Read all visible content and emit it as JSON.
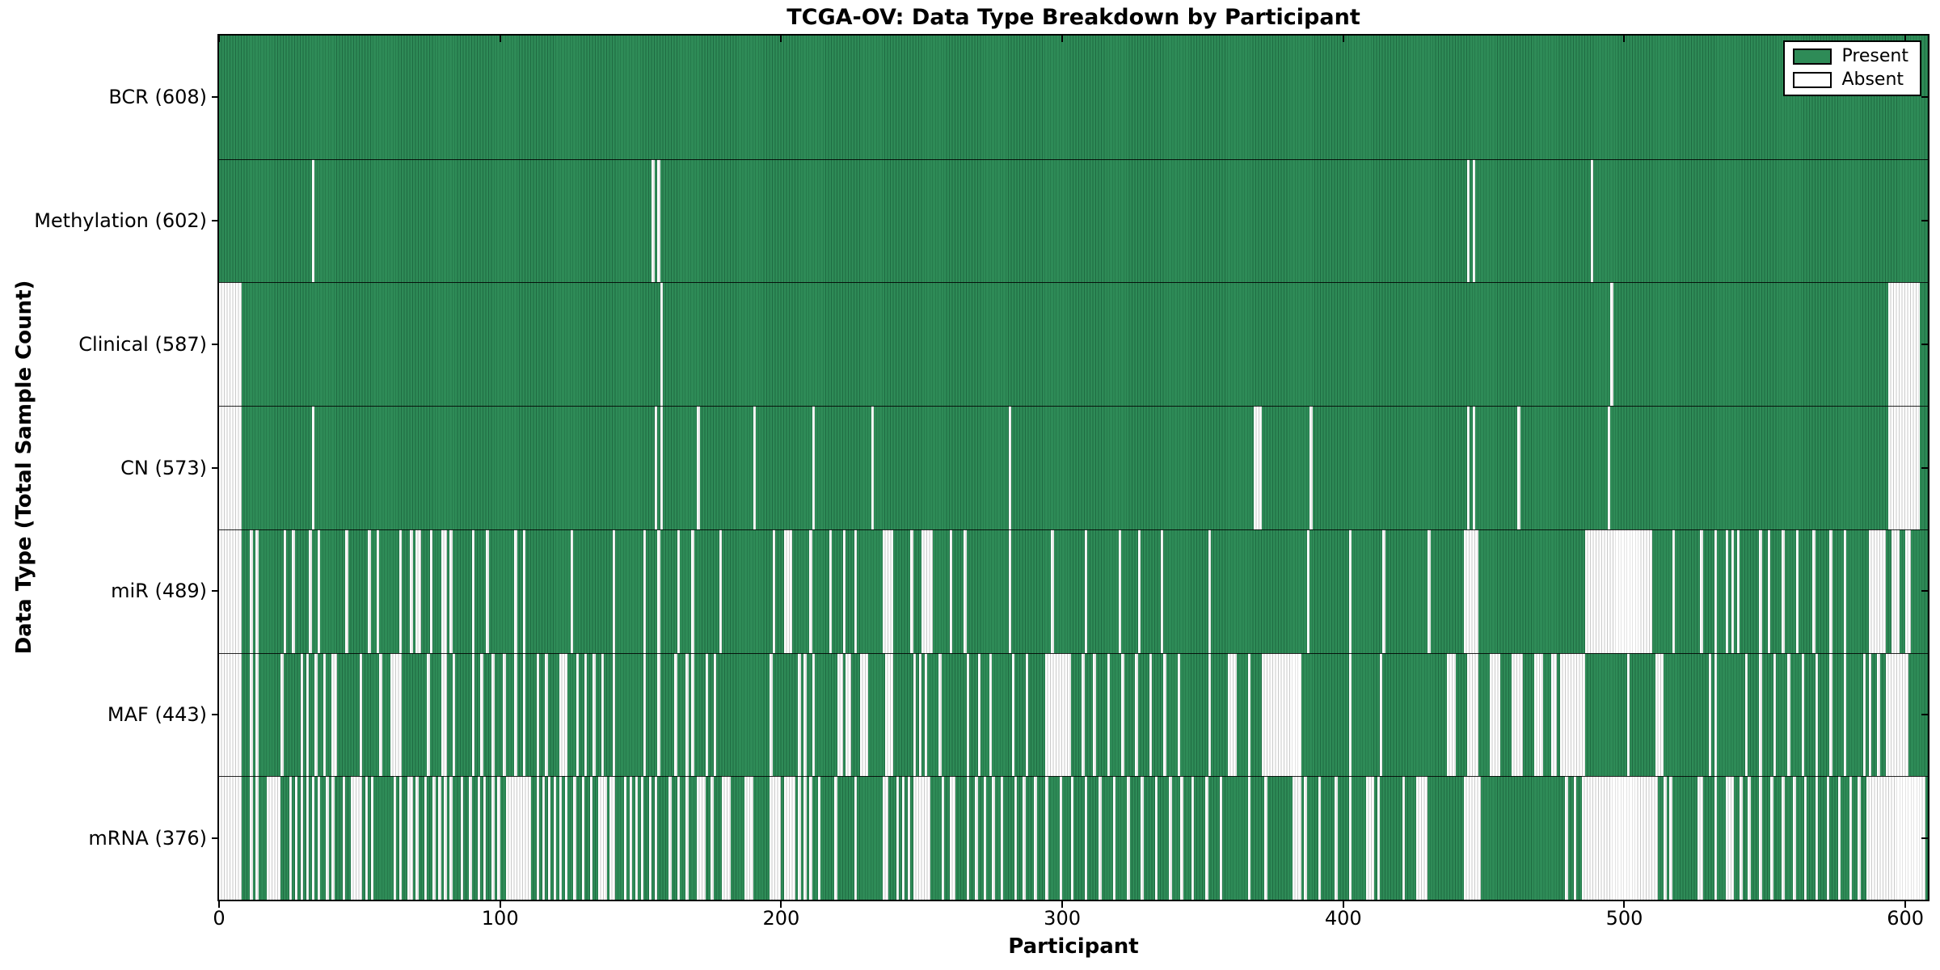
{
  "title": "TCGA-OV: Data Type Breakdown by Participant",
  "xlabel": "Participant",
  "ylabel": "Data Type (Total Sample Count)",
  "legend": {
    "present_label": "Present",
    "absent_label": "Absent"
  },
  "colors": {
    "present_fill": "#2e8b57",
    "present_edge": "#1f6b42",
    "absent_fill": "#ffffff",
    "absent_edge": "#c9c9c9",
    "row_separator": "#000000",
    "spine": "#000000"
  },
  "chart_data": {
    "type": "heatmap",
    "title": "TCGA-OV: Data Type Breakdown by Participant",
    "xlabel": "Participant",
    "ylabel": "Data Type (Total Sample Count)",
    "legend_entries": [
      "Present",
      "Absent"
    ],
    "legend_position": "upper right",
    "grid": false,
    "n_participants": 608,
    "x_range": [
      0,
      608
    ],
    "x_ticks": [
      0,
      100,
      200,
      300,
      400,
      500,
      600
    ],
    "cell_values": {
      "present": 1,
      "absent": 0
    },
    "rows": [
      {
        "name": "BCR",
        "label": "BCR (608)",
        "present_count": 608,
        "absent_count": 0,
        "absent_ranges": []
      },
      {
        "name": "Methylation",
        "label": "Methylation (602)",
        "present_count": 602,
        "absent_count": 6,
        "absent_ranges": [
          [
            33,
            33
          ],
          [
            154,
            154
          ],
          [
            156,
            156
          ],
          [
            444,
            444
          ],
          [
            446,
            446
          ],
          [
            488,
            488
          ]
        ]
      },
      {
        "name": "Clinical",
        "label": "Clinical (587)",
        "present_count": 587,
        "absent_count": 21,
        "absent_ranges": [
          [
            0,
            7
          ],
          [
            157,
            157
          ],
          [
            495,
            495
          ],
          [
            594,
            604
          ]
        ]
      },
      {
        "name": "CN",
        "label": "CN (573)",
        "present_count": 573,
        "absent_count": 35,
        "absent_ranges": [
          [
            0,
            7
          ],
          [
            33,
            33
          ],
          [
            155,
            155
          ],
          [
            157,
            157
          ],
          [
            170,
            170
          ],
          [
            190,
            190
          ],
          [
            211,
            211
          ],
          [
            232,
            232
          ],
          [
            281,
            281
          ],
          [
            368,
            370
          ],
          [
            388,
            388
          ],
          [
            444,
            444
          ],
          [
            446,
            446
          ],
          [
            462,
            462
          ],
          [
            494,
            494
          ],
          [
            594,
            604
          ]
        ]
      },
      {
        "name": "miR",
        "label": "miR (489)",
        "present_count": 489,
        "absent_count": 119,
        "absent_ranges": [
          [
            0,
            7
          ],
          [
            11,
            11
          ],
          [
            13,
            13
          ],
          [
            23,
            23
          ],
          [
            26,
            26
          ],
          [
            32,
            32
          ],
          [
            35,
            35
          ],
          [
            45,
            45
          ],
          [
            53,
            53
          ],
          [
            56,
            56
          ],
          [
            64,
            64
          ],
          [
            68,
            68
          ],
          [
            70,
            71
          ],
          [
            75,
            75
          ],
          [
            79,
            80
          ],
          [
            82,
            82
          ],
          [
            90,
            90
          ],
          [
            95,
            95
          ],
          [
            105,
            105
          ],
          [
            108,
            108
          ],
          [
            125,
            125
          ],
          [
            140,
            140
          ],
          [
            151,
            151
          ],
          [
            156,
            156
          ],
          [
            163,
            163
          ],
          [
            168,
            168
          ],
          [
            178,
            178
          ],
          [
            197,
            197
          ],
          [
            201,
            203
          ],
          [
            210,
            210
          ],
          [
            217,
            217
          ],
          [
            222,
            222
          ],
          [
            226,
            226
          ],
          [
            236,
            239
          ],
          [
            246,
            246
          ],
          [
            250,
            253
          ],
          [
            260,
            260
          ],
          [
            265,
            265
          ],
          [
            281,
            281
          ],
          [
            296,
            296
          ],
          [
            308,
            308
          ],
          [
            320,
            320
          ],
          [
            327,
            327
          ],
          [
            335,
            335
          ],
          [
            352,
            352
          ],
          [
            387,
            387
          ],
          [
            402,
            402
          ],
          [
            414,
            414
          ],
          [
            430,
            430
          ],
          [
            443,
            447
          ],
          [
            486,
            509
          ],
          [
            517,
            517
          ],
          [
            527,
            527
          ],
          [
            532,
            532
          ],
          [
            536,
            536
          ],
          [
            538,
            538
          ],
          [
            540,
            540
          ],
          [
            548,
            548
          ],
          [
            551,
            551
          ],
          [
            556,
            556
          ],
          [
            561,
            561
          ],
          [
            567,
            567
          ],
          [
            573,
            573
          ],
          [
            578,
            578
          ],
          [
            587,
            592
          ],
          [
            595,
            597
          ],
          [
            600,
            601
          ]
        ]
      },
      {
        "name": "MAF",
        "label": "MAF (443)",
        "present_count": 443,
        "absent_count": 165,
        "absent_ranges": [
          [
            0,
            7
          ],
          [
            11,
            11
          ],
          [
            13,
            13
          ],
          [
            22,
            22
          ],
          [
            29,
            29
          ],
          [
            31,
            31
          ],
          [
            34,
            34
          ],
          [
            37,
            37
          ],
          [
            40,
            41
          ],
          [
            50,
            50
          ],
          [
            57,
            57
          ],
          [
            61,
            64
          ],
          [
            74,
            74
          ],
          [
            79,
            80
          ],
          [
            83,
            83
          ],
          [
            90,
            90
          ],
          [
            93,
            93
          ],
          [
            97,
            97
          ],
          [
            101,
            101
          ],
          [
            105,
            105
          ],
          [
            108,
            108
          ],
          [
            113,
            113
          ],
          [
            116,
            116
          ],
          [
            121,
            123
          ],
          [
            127,
            127
          ],
          [
            130,
            130
          ],
          [
            133,
            133
          ],
          [
            136,
            136
          ],
          [
            140,
            140
          ],
          [
            151,
            151
          ],
          [
            156,
            156
          ],
          [
            162,
            162
          ],
          [
            166,
            166
          ],
          [
            168,
            168
          ],
          [
            173,
            173
          ],
          [
            176,
            176
          ],
          [
            196,
            196
          ],
          [
            206,
            206
          ],
          [
            208,
            208
          ],
          [
            211,
            211
          ],
          [
            220,
            221
          ],
          [
            223,
            224
          ],
          [
            228,
            230
          ],
          [
            237,
            239
          ],
          [
            247,
            247
          ],
          [
            249,
            249
          ],
          [
            251,
            251
          ],
          [
            256,
            256
          ],
          [
            266,
            266
          ],
          [
            270,
            270
          ],
          [
            274,
            274
          ],
          [
            282,
            282
          ],
          [
            287,
            287
          ],
          [
            294,
            302
          ],
          [
            307,
            307
          ],
          [
            311,
            311
          ],
          [
            316,
            316
          ],
          [
            321,
            321
          ],
          [
            326,
            326
          ],
          [
            331,
            331
          ],
          [
            336,
            336
          ],
          [
            341,
            341
          ],
          [
            352,
            352
          ],
          [
            359,
            361
          ],
          [
            366,
            366
          ],
          [
            371,
            384
          ],
          [
            402,
            402
          ],
          [
            413,
            413
          ],
          [
            437,
            439
          ],
          [
            444,
            447
          ],
          [
            452,
            455
          ],
          [
            460,
            463
          ],
          [
            468,
            470
          ],
          [
            474,
            475
          ],
          [
            477,
            485
          ],
          [
            501,
            501
          ],
          [
            511,
            513
          ],
          [
            530,
            530
          ],
          [
            532,
            532
          ],
          [
            543,
            543
          ],
          [
            548,
            548
          ],
          [
            553,
            553
          ],
          [
            558,
            558
          ],
          [
            563,
            563
          ],
          [
            568,
            568
          ],
          [
            573,
            573
          ],
          [
            578,
            578
          ],
          [
            585,
            585
          ],
          [
            587,
            587
          ],
          [
            590,
            590
          ],
          [
            593,
            600
          ]
        ]
      },
      {
        "name": "mRNA",
        "label": "mRNA (376)",
        "present_count": 376,
        "absent_count": 232,
        "absent_ranges": [
          [
            0,
            7
          ],
          [
            11,
            11
          ],
          [
            13,
            13
          ],
          [
            17,
            21
          ],
          [
            25,
            25
          ],
          [
            27,
            27
          ],
          [
            29,
            29
          ],
          [
            31,
            31
          ],
          [
            33,
            33
          ],
          [
            35,
            35
          ],
          [
            38,
            38
          ],
          [
            40,
            40
          ],
          [
            44,
            44
          ],
          [
            47,
            50
          ],
          [
            52,
            52
          ],
          [
            54,
            54
          ],
          [
            62,
            62
          ],
          [
            64,
            64
          ],
          [
            67,
            68
          ],
          [
            70,
            70
          ],
          [
            73,
            73
          ],
          [
            76,
            76
          ],
          [
            78,
            78
          ],
          [
            80,
            80
          ],
          [
            82,
            82
          ],
          [
            86,
            86
          ],
          [
            89,
            89
          ],
          [
            92,
            92
          ],
          [
            94,
            94
          ],
          [
            97,
            97
          ],
          [
            99,
            99
          ],
          [
            102,
            110
          ],
          [
            113,
            113
          ],
          [
            115,
            115
          ],
          [
            117,
            117
          ],
          [
            119,
            119
          ],
          [
            121,
            121
          ],
          [
            123,
            123
          ],
          [
            126,
            126
          ],
          [
            129,
            129
          ],
          [
            132,
            132
          ],
          [
            135,
            137
          ],
          [
            139,
            140
          ],
          [
            144,
            144
          ],
          [
            146,
            146
          ],
          [
            148,
            148
          ],
          [
            150,
            150
          ],
          [
            153,
            153
          ],
          [
            155,
            155
          ],
          [
            160,
            160
          ],
          [
            163,
            163
          ],
          [
            166,
            166
          ],
          [
            170,
            172
          ],
          [
            175,
            175
          ],
          [
            179,
            181
          ],
          [
            187,
            189
          ],
          [
            196,
            199
          ],
          [
            201,
            204
          ],
          [
            206,
            206
          ],
          [
            208,
            208
          ],
          [
            210,
            210
          ],
          [
            213,
            213
          ],
          [
            219,
            219
          ],
          [
            226,
            226
          ],
          [
            236,
            237
          ],
          [
            241,
            241
          ],
          [
            243,
            243
          ],
          [
            245,
            245
          ],
          [
            247,
            252
          ],
          [
            257,
            257
          ],
          [
            260,
            261
          ],
          [
            266,
            266
          ],
          [
            269,
            269
          ],
          [
            272,
            272
          ],
          [
            275,
            275
          ],
          [
            278,
            278
          ],
          [
            283,
            283
          ],
          [
            286,
            286
          ],
          [
            290,
            290
          ],
          [
            294,
            294
          ],
          [
            299,
            299
          ],
          [
            303,
            303
          ],
          [
            308,
            308
          ],
          [
            313,
            313
          ],
          [
            318,
            318
          ],
          [
            323,
            323
          ],
          [
            328,
            328
          ],
          [
            333,
            333
          ],
          [
            338,
            338
          ],
          [
            342,
            342
          ],
          [
            346,
            346
          ],
          [
            351,
            351
          ],
          [
            356,
            356
          ],
          [
            366,
            366
          ],
          [
            372,
            372
          ],
          [
            382,
            384
          ],
          [
            386,
            386
          ],
          [
            391,
            391
          ],
          [
            397,
            397
          ],
          [
            402,
            402
          ],
          [
            408,
            410
          ],
          [
            412,
            412
          ],
          [
            421,
            421
          ],
          [
            426,
            429
          ],
          [
            443,
            448
          ],
          [
            479,
            479
          ],
          [
            482,
            482
          ],
          [
            485,
            511
          ],
          [
            514,
            514
          ],
          [
            516,
            516
          ],
          [
            526,
            527
          ],
          [
            532,
            532
          ],
          [
            536,
            538
          ],
          [
            541,
            541
          ],
          [
            544,
            544
          ],
          [
            548,
            548
          ],
          [
            552,
            552
          ],
          [
            556,
            556
          ],
          [
            560,
            560
          ],
          [
            564,
            564
          ],
          [
            568,
            568
          ],
          [
            572,
            572
          ],
          [
            576,
            576
          ],
          [
            580,
            580
          ],
          [
            583,
            583
          ],
          [
            586,
            606
          ]
        ]
      }
    ]
  }
}
